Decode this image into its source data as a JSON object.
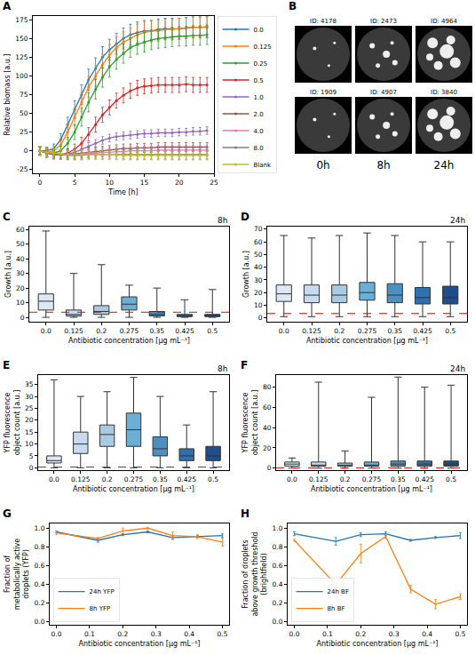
{
  "chart_data": [
    {
      "panel": "A",
      "type": "line",
      "xlabel": "Time [h]",
      "ylabel": "Relative biomass [a.u.]",
      "grid": false,
      "legend": "right",
      "marker": "circle",
      "x": [
        0,
        1,
        2,
        3,
        4,
        5,
        6,
        7,
        8,
        9,
        10,
        11,
        12,
        13,
        14,
        15,
        16,
        17,
        18,
        19,
        20,
        21,
        22,
        23,
        24
      ],
      "xlim": [
        -1,
        25
      ],
      "xticks": [
        0,
        5,
        10,
        15,
        20,
        25
      ],
      "ylim": [
        -30,
        180
      ],
      "yticks": [
        -25,
        0,
        25,
        50,
        75,
        100,
        125,
        150,
        175
      ],
      "series": [
        {
          "name": "0.0",
          "color": "#1f77b4",
          "values": [
            0,
            0,
            3,
            15,
            35,
            55,
            75,
            95,
            110,
            125,
            135,
            143,
            150,
            155,
            158,
            160,
            160,
            162,
            163,
            163,
            163,
            164,
            165,
            165,
            165
          ],
          "error": [
            5,
            5,
            6,
            8,
            10,
            12,
            13,
            14,
            14,
            14,
            14,
            14,
            14,
            14,
            14,
            14,
            14,
            14,
            14,
            14,
            14,
            14,
            14,
            14,
            14
          ]
        },
        {
          "name": "0.125",
          "color": "#ff7f0e",
          "values": [
            0,
            -2,
            0,
            8,
            25,
            45,
            65,
            85,
            100,
            115,
            128,
            138,
            145,
            150,
            155,
            158,
            160,
            160,
            162,
            162,
            163,
            164,
            165,
            165,
            166
          ],
          "error": [
            5,
            5,
            6,
            8,
            10,
            12,
            13,
            14,
            14,
            14,
            14,
            14,
            14,
            14,
            14,
            14,
            14,
            14,
            14,
            14,
            14,
            14,
            14,
            14,
            14
          ]
        },
        {
          "name": "0.25",
          "color": "#2ca02c",
          "values": [
            0,
            -3,
            -3,
            0,
            10,
            25,
            45,
            65,
            82,
            98,
            112,
            122,
            130,
            138,
            142,
            145,
            148,
            150,
            151,
            152,
            153,
            153,
            154,
            154,
            155
          ],
          "error": [
            5,
            5,
            5,
            6,
            8,
            10,
            12,
            13,
            13,
            13,
            13,
            13,
            13,
            13,
            13,
            13,
            13,
            13,
            13,
            13,
            13,
            13,
            13,
            13,
            13
          ]
        },
        {
          "name": "0.5",
          "color": "#d62728",
          "values": [
            0,
            -3,
            -5,
            -5,
            -3,
            2,
            10,
            22,
            35,
            48,
            58,
            67,
            74,
            80,
            84,
            86,
            87,
            88,
            88,
            88,
            88,
            89,
            88,
            88,
            88
          ],
          "error": [
            5,
            5,
            5,
            5,
            6,
            7,
            8,
            9,
            10,
            10,
            10,
            10,
            10,
            10,
            10,
            10,
            10,
            10,
            10,
            10,
            10,
            10,
            10,
            10,
            10
          ]
        },
        {
          "name": "1.0",
          "color": "#9467bd",
          "values": [
            0,
            -3,
            -5,
            -5,
            -4,
            -2,
            2,
            6,
            10,
            14,
            17,
            19,
            20,
            21,
            22,
            23,
            23,
            24,
            24,
            24,
            25,
            25,
            26,
            26,
            27
          ],
          "error": [
            5,
            5,
            5,
            5,
            5,
            5,
            5,
            5,
            5,
            5,
            5,
            5,
            5,
            5,
            5,
            5,
            5,
            5,
            5,
            5,
            5,
            5,
            5,
            5,
            5
          ]
        },
        {
          "name": "2.0",
          "color": "#8c564b",
          "values": [
            0,
            -3,
            -5,
            -5,
            -5,
            -4,
            -3,
            -2,
            -1,
            0,
            1,
            2,
            3,
            3,
            4,
            4,
            4,
            5,
            5,
            5,
            5,
            5,
            5,
            5,
            5
          ],
          "error": [
            6,
            6,
            6,
            6,
            6,
            6,
            6,
            6,
            6,
            6,
            6,
            6,
            6,
            6,
            6,
            6,
            6,
            6,
            6,
            6,
            6,
            6,
            6,
            6,
            6
          ]
        },
        {
          "name": "4.0",
          "color": "#e377c2",
          "values": [
            0,
            -2,
            -4,
            -5,
            -5,
            -5,
            -4,
            -3,
            -3,
            -2,
            -2,
            -1,
            -1,
            0,
            0,
            0,
            0,
            1,
            1,
            1,
            1,
            1,
            1,
            1,
            1
          ],
          "error": [
            6,
            6,
            6,
            6,
            6,
            6,
            6,
            6,
            6,
            6,
            6,
            6,
            6,
            6,
            6,
            6,
            6,
            6,
            6,
            6,
            6,
            6,
            6,
            6,
            6
          ]
        },
        {
          "name": "8.0",
          "color": "#7f7f7f",
          "values": [
            0,
            -2,
            -4,
            -5,
            -6,
            -6,
            -6,
            -5,
            -5,
            -5,
            -5,
            -5,
            -5,
            -5,
            -5,
            -5,
            -5,
            -5,
            -5,
            -5,
            -5,
            -5,
            -5,
            -5,
            -5
          ],
          "error": [
            6,
            6,
            6,
            6,
            6,
            6,
            6,
            6,
            6,
            6,
            6,
            6,
            6,
            6,
            6,
            6,
            6,
            6,
            6,
            6,
            6,
            6,
            6,
            6,
            6
          ]
        },
        {
          "name": "Blank",
          "color": "#bcbd22",
          "values": [
            0,
            -2,
            -3,
            -4,
            -5,
            -5,
            -5,
            -5,
            -5,
            -5,
            -5,
            -5,
            -6,
            -6,
            -6,
            -6,
            -6,
            -6,
            -6,
            -6,
            -6,
            -6,
            -6,
            -6,
            -6
          ],
          "error": [
            6,
            6,
            6,
            6,
            6,
            6,
            6,
            6,
            6,
            6,
            6,
            6,
            6,
            6,
            6,
            6,
            6,
            6,
            6,
            6,
            6,
            6,
            6,
            6,
            6
          ]
        }
      ]
    },
    {
      "panel": "C",
      "type": "box",
      "annotation": "8h",
      "xlabel": "Antibiotic concentration [μg mL⁻¹]",
      "ylabel": "Growth [a.u.]",
      "grid": false,
      "categories": [
        "0.0",
        "0.125",
        "0.2",
        "0.275",
        "0.35",
        "0.425",
        "0.5"
      ],
      "colors": [
        "#dce9f5",
        "#c6dbef",
        "#a6cbe3",
        "#6baed6",
        "#4a90c2",
        "#2f6fad",
        "#1f4e8c"
      ],
      "ylim": [
        -3,
        62
      ],
      "yticks": [
        0,
        10,
        20,
        30,
        40,
        50,
        60
      ],
      "threshold": 3.5,
      "min": [
        0,
        0,
        0,
        0,
        0,
        0,
        0
      ],
      "q1": [
        5,
        1,
        2,
        5,
        1,
        0.5,
        0.5
      ],
      "median": [
        11,
        2,
        4,
        9,
        2,
        1,
        1
      ],
      "q3": [
        16,
        5,
        8,
        14,
        4,
        2,
        2
      ],
      "max": [
        59,
        30,
        36,
        22,
        20,
        12,
        19
      ]
    },
    {
      "panel": "D",
      "type": "box",
      "annotation": "24h",
      "xlabel": "Antibiotic concentration [μg mL⁻¹]",
      "ylabel": "Growth [a.u.]",
      "grid": false,
      "categories": [
        "0.0",
        "0.125",
        "0.2",
        "0.275",
        "0.35",
        "0.425",
        "0.5"
      ],
      "colors": [
        "#dce9f5",
        "#c6dbef",
        "#a6cbe3",
        "#6baed6",
        "#4a90c2",
        "#2f6fad",
        "#1f4e8c"
      ],
      "ylim": [
        -3,
        72
      ],
      "yticks": [
        0,
        10,
        20,
        30,
        40,
        50,
        60,
        70
      ],
      "threshold": 3.5,
      "min": [
        1,
        1,
        1,
        1,
        1,
        1,
        1
      ],
      "q1": [
        13,
        12,
        12,
        14,
        12,
        11,
        11
      ],
      "median": [
        19,
        18,
        18,
        20,
        18,
        16,
        16
      ],
      "q3": [
        26,
        26,
        26,
        28,
        27,
        24,
        25
      ],
      "max": [
        65,
        63,
        65,
        67,
        65,
        60,
        60
      ]
    },
    {
      "panel": "E",
      "type": "box",
      "annotation": "8h",
      "xlabel": "Antibiotic concentration [μg mL⁻¹]",
      "ylabel": "YFP fluorescence object count [a.u.]",
      "grid": false,
      "categories": [
        "0.0",
        "0.125",
        "0.2",
        "0.275",
        "0.35",
        "0.425",
        "0.5"
      ],
      "colors": [
        "#dce9f5",
        "#c6dbef",
        "#a6cbe3",
        "#6baed6",
        "#4a90c2",
        "#2f6fad",
        "#1f4e8c"
      ],
      "ylim": [
        -1,
        39
      ],
      "yticks": [
        0,
        5,
        10,
        15,
        20,
        25,
        30,
        35
      ],
      "threshold": 0.3,
      "min": [
        0,
        0,
        0,
        0,
        0,
        0,
        0
      ],
      "q1": [
        2,
        6,
        9,
        9,
        5,
        3,
        3
      ],
      "median": [
        3,
        10,
        14,
        16,
        8,
        5,
        5
      ],
      "q3": [
        5,
        15,
        18,
        23,
        13,
        8,
        9
      ],
      "max": [
        37,
        30,
        32,
        38,
        30,
        18,
        32
      ]
    },
    {
      "panel": "F",
      "type": "box",
      "annotation": "24h",
      "xlabel": "Antibiotic concentration [μg mL⁻¹]",
      "ylabel": "YFP fluorescence object count [a.u.]",
      "grid": false,
      "categories": [
        "0.0",
        "0.125",
        "0.2",
        "0.275",
        "0.35",
        "0.425",
        "0.5"
      ],
      "colors": [
        "#dce9f5",
        "#c6dbef",
        "#a6cbe3",
        "#6baed6",
        "#4a90c2",
        "#2f6fad",
        "#1f4e8c"
      ],
      "ylim": [
        -2,
        92
      ],
      "yticks": [
        0,
        20,
        40,
        60,
        80
      ],
      "threshold": 0.3,
      "min": [
        0,
        0,
        0,
        0,
        0,
        0,
        0
      ],
      "q1": [
        2,
        2,
        2,
        2,
        2,
        2,
        2
      ],
      "median": [
        4,
        3,
        3,
        3,
        4,
        4,
        4
      ],
      "q3": [
        6,
        6,
        5,
        6,
        7,
        7,
        7
      ],
      "max": [
        10,
        85,
        17,
        70,
        90,
        80,
        82
      ]
    },
    {
      "panel": "G",
      "type": "line",
      "xlabel": "Antibiotic concentration [μg mL⁻¹]",
      "ylabel": "Fraction of metabolically active droplets (YFP)",
      "grid": false,
      "legend": "lower left",
      "x": [
        0,
        0.125,
        0.2,
        0.275,
        0.35,
        0.425,
        0.5
      ],
      "xlim": [
        -0.02,
        0.52
      ],
      "xticks": [
        {
          "value": 0,
          "label": "0.0"
        },
        0.1,
        0.2,
        0.3,
        0.4,
        0.5
      ],
      "ylim": [
        -0.03,
        1.05
      ],
      "yticks": [
        {
          "value": 0,
          "label": "0.0"
        },
        0.2,
        0.4,
        0.6,
        0.8,
        {
          "value": 1,
          "label": "1.0"
        }
      ],
      "series": [
        {
          "name": "24h YFP",
          "color": "#1f77b4",
          "values": [
            0.96,
            0.87,
            0.93,
            0.96,
            0.9,
            0.91,
            0.92
          ],
          "error": [
            0.01,
            0.02,
            0.01,
            0.01,
            0.02,
            0.01,
            0.02
          ]
        },
        {
          "name": "8h YFP",
          "color": "#ff7f0e",
          "values": [
            0.95,
            0.89,
            0.97,
            1.0,
            0.92,
            0.91,
            0.85
          ],
          "error": [
            0.02,
            0.01,
            0.03,
            0.01,
            0.04,
            0.02,
            0.04
          ]
        }
      ]
    },
    {
      "panel": "H",
      "type": "line",
      "xlabel": "Antibiotic concentration [μg mL⁻¹]",
      "ylabel": "Fraction of droplets above growth threshold (brightfield)",
      "grid": false,
      "legend": "lower left",
      "x": [
        0,
        0.125,
        0.2,
        0.275,
        0.35,
        0.425,
        0.5
      ],
      "xlim": [
        -0.02,
        0.52
      ],
      "xticks": [
        {
          "value": 0,
          "label": "0.0"
        },
        0.1,
        0.2,
        0.3,
        0.4,
        0.5
      ],
      "ylim": [
        -0.03,
        1.05
      ],
      "yticks": [
        {
          "value": 0,
          "label": "0.0"
        },
        0.2,
        0.4,
        0.6,
        0.8,
        {
          "value": 1,
          "label": "1.0"
        }
      ],
      "series": [
        {
          "name": "24h BF",
          "color": "#1f77b4",
          "values": [
            0.94,
            0.86,
            0.93,
            0.94,
            0.87,
            0.9,
            0.92
          ],
          "error": [
            0.02,
            0.04,
            0.02,
            0.02,
            0.01,
            0.01,
            0.03
          ]
        },
        {
          "name": "8h BF",
          "color": "#ff7f0e",
          "values": [
            0.87,
            0.4,
            0.73,
            0.91,
            0.35,
            0.19,
            0.27
          ],
          "error": [
            0.01,
            0.0,
            0.1,
            0.02,
            0.04,
            0.05,
            0.03
          ]
        }
      ]
    }
  ],
  "image_panel": {
    "panel": "B",
    "images": [
      [
        "ID: 4178",
        "ID: 2473",
        "ID: 4964"
      ],
      [
        "ID: 1909",
        "ID: 4907",
        "ID: 3840"
      ]
    ],
    "times": [
      "0h",
      "8h",
      "24h"
    ]
  }
}
